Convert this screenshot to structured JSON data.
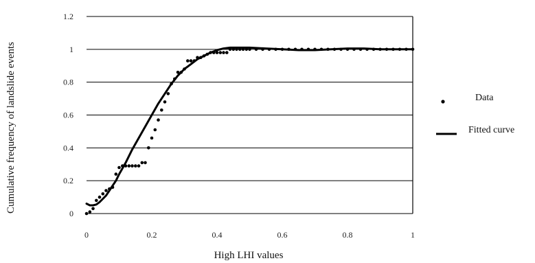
{
  "chart_data": {
    "type": "scatter",
    "xlabel": "High LHI values",
    "ylabel": "Cumulative frequency of landslide events",
    "xlim": [
      0,
      1
    ],
    "ylim": [
      0,
      1.2
    ],
    "x_ticks": [
      "0",
      "0.2",
      "0.4",
      "0.6",
      "0.8",
      "1"
    ],
    "y_ticks": [
      "0",
      "0.2",
      "0.4",
      "0.6",
      "0.8",
      "1",
      "1.2"
    ],
    "grid": "horizontal",
    "legend_position": "right",
    "colors": {
      "data": "#000000",
      "fitted": "#000000",
      "grid": "#000000"
    },
    "series": [
      {
        "name": "Data",
        "kind": "points",
        "x": [
          0.0,
          0.01,
          0.02,
          0.03,
          0.04,
          0.05,
          0.06,
          0.07,
          0.08,
          0.09,
          0.1,
          0.11,
          0.12,
          0.13,
          0.14,
          0.15,
          0.16,
          0.17,
          0.18,
          0.19,
          0.2,
          0.21,
          0.22,
          0.23,
          0.24,
          0.25,
          0.26,
          0.27,
          0.28,
          0.29,
          0.3,
          0.31,
          0.32,
          0.33,
          0.34,
          0.35,
          0.36,
          0.37,
          0.38,
          0.39,
          0.4,
          0.41,
          0.42,
          0.43,
          0.44,
          0.45,
          0.46,
          0.47,
          0.48,
          0.49,
          0.5,
          0.52,
          0.54,
          0.56,
          0.58,
          0.6,
          0.62,
          0.64,
          0.66,
          0.68,
          0.7,
          0.72,
          0.74,
          0.76,
          0.78,
          0.8,
          0.82,
          0.84,
          0.86,
          0.88,
          0.9,
          0.92,
          0.94,
          0.96,
          0.98,
          1.0
        ],
        "y": [
          0.0,
          0.01,
          0.03,
          0.08,
          0.1,
          0.12,
          0.14,
          0.15,
          0.16,
          0.24,
          0.28,
          0.29,
          0.29,
          0.29,
          0.29,
          0.29,
          0.29,
          0.31,
          0.31,
          0.4,
          0.46,
          0.51,
          0.57,
          0.63,
          0.68,
          0.73,
          0.79,
          0.82,
          0.86,
          0.86,
          0.88,
          0.93,
          0.93,
          0.93,
          0.95,
          0.95,
          0.96,
          0.97,
          0.98,
          0.98,
          0.98,
          0.98,
          0.98,
          0.98,
          1.0,
          1.0,
          1.0,
          1.0,
          1.0,
          1.0,
          1.0,
          1.0,
          1.0,
          1.0,
          1.0,
          1.0,
          1.0,
          1.0,
          1.0,
          1.0,
          1.0,
          1.0,
          1.0,
          1.0,
          1.0,
          1.0,
          1.0,
          1.0,
          1.0,
          1.0,
          1.0,
          1.0,
          1.0,
          1.0,
          1.0,
          1.0
        ]
      },
      {
        "name": "Fitted curve",
        "kind": "line",
        "x": [
          0.0,
          0.01,
          0.02,
          0.03,
          0.04,
          0.05,
          0.06,
          0.07,
          0.08,
          0.09,
          0.1,
          0.12,
          0.14,
          0.16,
          0.18,
          0.2,
          0.22,
          0.24,
          0.26,
          0.28,
          0.3,
          0.32,
          0.34,
          0.36,
          0.38,
          0.4,
          0.42,
          0.44,
          0.46,
          0.48,
          0.5,
          0.55,
          0.6,
          0.65,
          0.7,
          0.75,
          0.8,
          0.85,
          0.9,
          0.95,
          1.0
        ],
        "y": [
          0.06,
          0.05,
          0.05,
          0.055,
          0.07,
          0.09,
          0.11,
          0.14,
          0.17,
          0.2,
          0.24,
          0.31,
          0.39,
          0.46,
          0.53,
          0.6,
          0.67,
          0.73,
          0.79,
          0.84,
          0.88,
          0.91,
          0.94,
          0.96,
          0.98,
          0.995,
          1.005,
          1.01,
          1.01,
          1.01,
          1.01,
          1.005,
          1.0,
          0.995,
          0.995,
          1.0,
          1.005,
          1.005,
          1.0,
          1.0,
          1.0
        ]
      }
    ]
  }
}
